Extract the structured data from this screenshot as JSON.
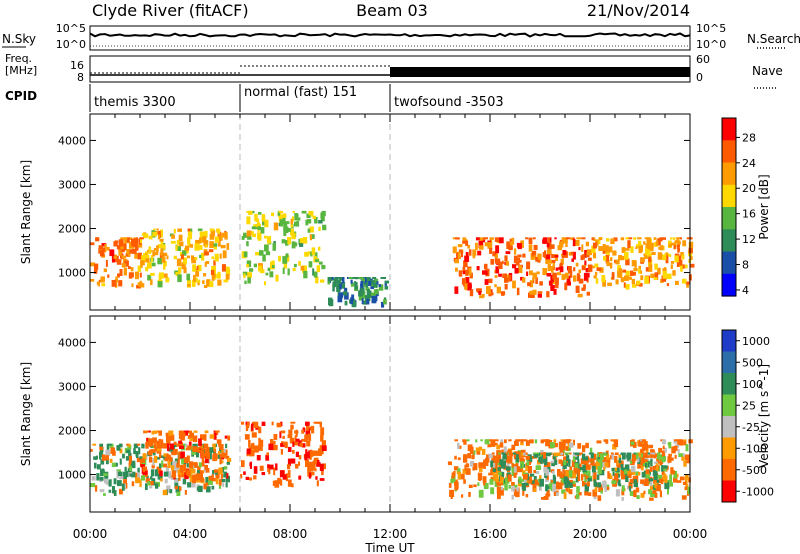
{
  "header": {
    "site": "Clyde River (fitACF)",
    "beam": "Beam 03",
    "date": "21/Nov/2014"
  },
  "noise_panel": {
    "left_label": "N.Sky",
    "right_label": "N.Search",
    "left_ticks": [
      "10^5",
      "10^0"
    ],
    "right_ticks": [
      "10^5",
      "10^0"
    ]
  },
  "freq_panel": {
    "left_label_line1": "Freq.",
    "left_label_line2": "[MHz]",
    "left_ticks": [
      "16",
      "8"
    ],
    "right_label": "Nave",
    "right_ticks": [
      "60",
      "0"
    ]
  },
  "cpid_panel": {
    "label": "CPID",
    "segments": [
      {
        "name": "themis 3300",
        "start_hour": 0,
        "end_hour": 6
      },
      {
        "name": "normal (fast) 151",
        "start_hour": 6,
        "end_hour": 12
      },
      {
        "name": "twofsound -3503",
        "start_hour": 12,
        "end_hour": 24
      }
    ]
  },
  "x_axis": {
    "label": "Time UT",
    "ticks": [
      "00:00",
      "04:00",
      "08:00",
      "12:00",
      "16:00",
      "20:00",
      "00:00"
    ],
    "range_hours": [
      0,
      24
    ]
  },
  "power_panel": {
    "ylabel": "Slant Range [km]",
    "yticks": [
      "4000",
      "3000",
      "2000",
      "1000"
    ],
    "colorbar_label": "Power [dB]",
    "colorbar_ticks": [
      "28",
      "24",
      "20",
      "16",
      "12",
      "8",
      "4"
    ],
    "colors": [
      "#0000ff",
      "#1a4fa8",
      "#2e8c58",
      "#58b640",
      "#ffd800",
      "#ff9a00",
      "#ff5a00",
      "#ff0000"
    ]
  },
  "velocity_panel": {
    "ylabel": "Slant Range [km]",
    "yticks": [
      "4000",
      "3000",
      "2000",
      "1000"
    ],
    "colorbar_label": "Velocity [m s^-1]",
    "colorbar_ticks": [
      "1000",
      "500",
      "100",
      "25",
      "-25",
      "-100",
      "-500",
      "-1000"
    ],
    "colors": [
      "#1f3cc8",
      "#2c6fa8",
      "#2e8c58",
      "#6ec840",
      "#c0c0c0",
      "#ff9a00",
      "#ff6a00",
      "#ff0000"
    ]
  },
  "chart_data": [
    {
      "type": "heatmap",
      "title": "Power [dB]",
      "xlabel": "Time UT",
      "ylabel": "Slant Range [km]",
      "xlim": [
        0,
        24
      ],
      "ylim": [
        150,
        4600
      ],
      "zlim": [
        0,
        30
      ],
      "blobs": [
        {
          "t0": 0.0,
          "t1": 2.0,
          "r0": 600,
          "r1": 1800,
          "z": 24
        },
        {
          "t0": 2.0,
          "t1": 5.5,
          "r0": 650,
          "r1": 2000,
          "z": 20
        },
        {
          "t0": 6.0,
          "t1": 9.3,
          "r0": 700,
          "r1": 2400,
          "z": 16
        },
        {
          "t0": 9.5,
          "t1": 11.8,
          "r0": 200,
          "r1": 900,
          "z": 10
        },
        {
          "t0": 14.5,
          "t1": 20.0,
          "r0": 400,
          "r1": 1800,
          "z": 26
        },
        {
          "t0": 20.0,
          "t1": 24.0,
          "r0": 600,
          "r1": 1800,
          "z": 22
        }
      ]
    },
    {
      "type": "heatmap",
      "title": "Velocity [m s^-1]",
      "xlabel": "Time UT",
      "ylabel": "Slant Range [km]",
      "xlim": [
        0,
        24
      ],
      "ylim": [
        150,
        4600
      ],
      "zlim": [
        -1000,
        1000
      ],
      "blobs": [
        {
          "t0": 0.0,
          "t1": 5.5,
          "r0": 500,
          "r1": 1700,
          "z": 100
        },
        {
          "t0": 2.0,
          "t1": 5.5,
          "r0": 800,
          "r1": 2000,
          "z": -300
        },
        {
          "t0": 6.0,
          "t1": 9.3,
          "r0": 700,
          "r1": 2200,
          "z": -400
        },
        {
          "t0": 14.3,
          "t1": 24.0,
          "r0": 400,
          "r1": 1800,
          "z": -200
        },
        {
          "t0": 16.0,
          "t1": 23.0,
          "r0": 600,
          "r1": 1500,
          "z": 50
        }
      ]
    }
  ]
}
